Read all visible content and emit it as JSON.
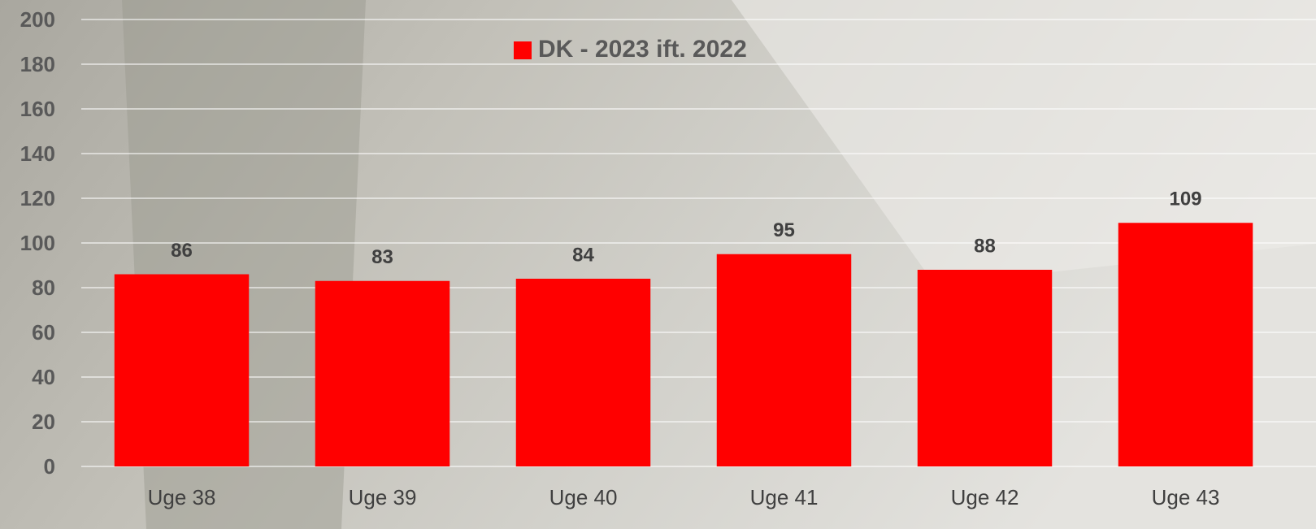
{
  "chart_data": {
    "type": "bar",
    "categories": [
      "Uge 38",
      "Uge 39",
      "Uge 40",
      "Uge 41",
      "Uge 42",
      "Uge 43"
    ],
    "series": [
      {
        "name": "DK - 2023 ift. 2022",
        "color": "#ff0000",
        "values": [
          86,
          83,
          84,
          95,
          88,
          109
        ]
      }
    ],
    "ylim": [
      0,
      200
    ],
    "yticks": [
      0,
      20,
      40,
      60,
      80,
      100,
      120,
      140,
      160,
      180,
      200
    ],
    "grid": true,
    "legend": "top",
    "data_labels": true
  }
}
